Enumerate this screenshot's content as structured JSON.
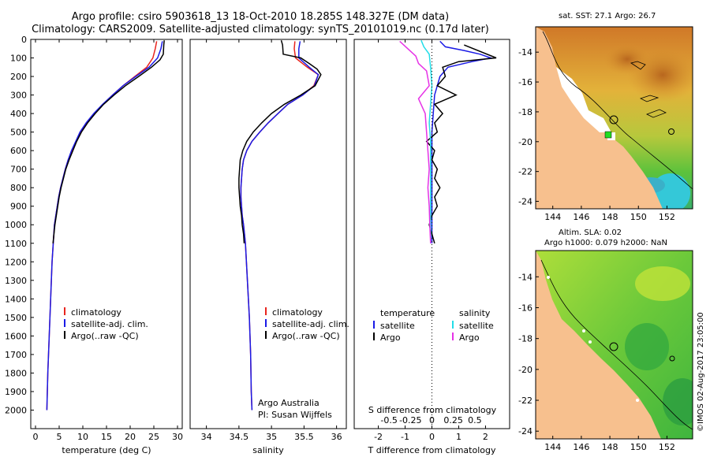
{
  "header": {
    "line1": "Argo profile: csiro 5903618_13 18-Oct-2010 18.285S 148.327E (DM data)",
    "line2": "Climatology: CARS2009. Satellite-adjusted climatology: synTS_20101019.nc (0.17d later)"
  },
  "colors": {
    "climatology": "#e8241e",
    "satellite": "#1a1ae6",
    "argo": "#000000",
    "sal_satellite": "#22dde8",
    "sal_argo": "#e632e6",
    "land": "#f7c08e"
  },
  "chart_data": [
    {
      "id": "temperature",
      "type": "line",
      "xlabel": "temperature (deg C)",
      "ylabel": "",
      "xlim": [
        -1,
        31
      ],
      "ylim": [
        2100,
        0
      ],
      "xticks": [
        0,
        5,
        10,
        15,
        20,
        25,
        30
      ],
      "yticks": [
        0,
        100,
        200,
        300,
        400,
        500,
        600,
        700,
        800,
        900,
        1000,
        1100,
        1200,
        1300,
        1400,
        1500,
        1600,
        1700,
        1800,
        1900,
        2000
      ],
      "legend": [
        "climatology",
        "satellite-adj. clim.",
        "Argo(..raw -QC)"
      ],
      "series": [
        {
          "name": "climatology",
          "color": "#e8241e",
          "points": [
            [
              25.6,
              10
            ],
            [
              25.3,
              50
            ],
            [
              24.8,
              100
            ],
            [
              23.5,
              150
            ],
            [
              21.0,
              200
            ],
            [
              18.5,
              250
            ],
            [
              16.3,
              300
            ],
            [
              14.3,
              350
            ],
            [
              12.4,
              400
            ],
            [
              10.9,
              450
            ],
            [
              9.6,
              500
            ],
            [
              8.6,
              550
            ],
            [
              7.7,
              600
            ],
            [
              6.9,
              650
            ],
            [
              6.3,
              700
            ],
            [
              5.8,
              750
            ],
            [
              5.3,
              800
            ],
            [
              4.9,
              850
            ],
            [
              4.6,
              900
            ],
            [
              4.3,
              950
            ],
            [
              4.0,
              1000
            ],
            [
              3.5,
              1200
            ],
            [
              3.2,
              1400
            ],
            [
              2.9,
              1600
            ],
            [
              2.6,
              1800
            ],
            [
              2.4,
              2000
            ]
          ]
        },
        {
          "name": "satellite-adj. clim.",
          "color": "#1a1ae6",
          "points": [
            [
              26.8,
              10
            ],
            [
              26.5,
              50
            ],
            [
              25.8,
              100
            ],
            [
              24.0,
              150
            ],
            [
              21.2,
              200
            ],
            [
              18.5,
              250
            ],
            [
              16.3,
              300
            ],
            [
              14.2,
              350
            ],
            [
              12.3,
              400
            ],
            [
              10.7,
              450
            ],
            [
              9.4,
              500
            ],
            [
              8.5,
              550
            ],
            [
              7.6,
              600
            ],
            [
              6.9,
              650
            ],
            [
              6.3,
              700
            ],
            [
              5.8,
              750
            ],
            [
              5.3,
              800
            ],
            [
              4.9,
              850
            ],
            [
              4.6,
              900
            ],
            [
              4.3,
              950
            ],
            [
              4.0,
              1000
            ],
            [
              3.5,
              1200
            ],
            [
              3.2,
              1400
            ],
            [
              2.9,
              1600
            ],
            [
              2.6,
              1800
            ],
            [
              2.4,
              2000
            ]
          ]
        },
        {
          "name": "Argo(..raw -QC)",
          "color": "#000000",
          "points": [
            [
              27.2,
              5
            ],
            [
              27.1,
              30
            ],
            [
              27.0,
              80
            ],
            [
              26.3,
              110
            ],
            [
              24.5,
              150
            ],
            [
              21.8,
              200
            ],
            [
              19.0,
              250
            ],
            [
              16.6,
              300
            ],
            [
              14.4,
              350
            ],
            [
              12.6,
              400
            ],
            [
              11.0,
              450
            ],
            [
              9.7,
              500
            ],
            [
              8.7,
              550
            ],
            [
              7.9,
              600
            ],
            [
              7.1,
              650
            ],
            [
              6.4,
              700
            ],
            [
              5.9,
              750
            ],
            [
              5.4,
              800
            ],
            [
              5.0,
              850
            ],
            [
              4.7,
              900
            ],
            [
              4.4,
              950
            ],
            [
              4.1,
              1000
            ],
            [
              3.9,
              1050
            ],
            [
              3.7,
              1100
            ]
          ]
        }
      ]
    },
    {
      "id": "salinity",
      "type": "line",
      "xlabel": "salinity",
      "ylabel": "",
      "xlim": [
        33.75,
        36.15
      ],
      "ylim": [
        2100,
        0
      ],
      "xticks": [
        34,
        34.5,
        35,
        35.5,
        36
      ],
      "legend": [
        "climatology",
        "satellite-adj. clim.",
        "Argo(..raw -QC)"
      ],
      "annotation": [
        "Argo Australia",
        "PI: Susan Wijffels"
      ],
      "series": [
        {
          "name": "climatology",
          "color": "#e8241e",
          "points": [
            [
              35.36,
              10
            ],
            [
              35.35,
              50
            ],
            [
              35.37,
              100
            ],
            [
              35.55,
              150
            ],
            [
              35.72,
              190
            ],
            [
              35.65,
              250
            ],
            [
              35.48,
              300
            ],
            [
              35.25,
              350
            ],
            [
              35.1,
              400
            ],
            [
              34.95,
              450
            ],
            [
              34.82,
              500
            ],
            [
              34.7,
              550
            ],
            [
              34.62,
              600
            ],
            [
              34.57,
              650
            ],
            [
              34.55,
              700
            ],
            [
              34.54,
              750
            ],
            [
              34.53,
              800
            ],
            [
              34.53,
              850
            ],
            [
              34.54,
              900
            ],
            [
              34.55,
              950
            ],
            [
              34.57,
              1000
            ],
            [
              34.6,
              1100
            ],
            [
              34.63,
              1300
            ],
            [
              34.66,
              1500
            ],
            [
              34.68,
              1700
            ],
            [
              34.69,
              1900
            ],
            [
              34.7,
              2000
            ]
          ]
        },
        {
          "name": "satellite-adj. clim.",
          "color": "#1a1ae6",
          "points": [
            [
              35.44,
              10
            ],
            [
              35.42,
              50
            ],
            [
              35.42,
              100
            ],
            [
              35.58,
              150
            ],
            [
              35.72,
              190
            ],
            [
              35.66,
              250
            ],
            [
              35.48,
              300
            ],
            [
              35.25,
              350
            ],
            [
              35.1,
              400
            ],
            [
              34.95,
              450
            ],
            [
              34.82,
              500
            ],
            [
              34.7,
              550
            ],
            [
              34.62,
              600
            ],
            [
              34.57,
              650
            ],
            [
              34.55,
              700
            ],
            [
              34.54,
              750
            ],
            [
              34.53,
              800
            ],
            [
              34.53,
              850
            ],
            [
              34.54,
              900
            ],
            [
              34.55,
              950
            ],
            [
              34.57,
              1000
            ],
            [
              34.6,
              1100
            ],
            [
              34.63,
              1300
            ],
            [
              34.66,
              1500
            ],
            [
              34.68,
              1700
            ],
            [
              34.69,
              1900
            ],
            [
              34.7,
              2000
            ]
          ]
        },
        {
          "name": "Argo(..raw -QC)",
          "color": "#000000",
          "points": [
            [
              35.15,
              5
            ],
            [
              35.17,
              30
            ],
            [
              35.18,
              80
            ],
            [
              35.45,
              100
            ],
            [
              35.58,
              130
            ],
            [
              35.7,
              160
            ],
            [
              35.76,
              190
            ],
            [
              35.67,
              250
            ],
            [
              35.45,
              300
            ],
            [
              35.2,
              350
            ],
            [
              35.0,
              400
            ],
            [
              34.85,
              450
            ],
            [
              34.72,
              500
            ],
            [
              34.62,
              550
            ],
            [
              34.56,
              600
            ],
            [
              34.52,
              650
            ],
            [
              34.51,
              700
            ],
            [
              34.5,
              750
            ],
            [
              34.5,
              800
            ],
            [
              34.51,
              850
            ],
            [
              34.52,
              900
            ],
            [
              34.54,
              950
            ],
            [
              34.55,
              1000
            ],
            [
              34.57,
              1050
            ],
            [
              34.58,
              1100
            ]
          ]
        }
      ]
    },
    {
      "id": "differences",
      "type": "line",
      "xlabel": "T difference from climatology",
      "xlabel_top": "S difference from climatology",
      "xlim": [
        -2.9,
        2.9
      ],
      "ylim": [
        2100,
        0
      ],
      "xticks_T": [
        -2,
        -1,
        0,
        1,
        2
      ],
      "xticks_S_labels": [
        "-0.5",
        "-0.25",
        "0",
        "0.25",
        "0.5"
      ],
      "legend_headers": [
        "temperature",
        "salinity"
      ],
      "legend": [
        "satellite",
        "Argo",
        "satellite",
        "Argo"
      ],
      "series": [
        {
          "name": "temperature satellite",
          "color": "#1a1ae6",
          "points": [
            [
              0.3,
              10
            ],
            [
              0.5,
              40
            ],
            [
              1.2,
              60
            ],
            [
              1.8,
              80
            ],
            [
              2.2,
              100
            ],
            [
              1.5,
              120
            ],
            [
              0.6,
              150
            ],
            [
              0.3,
              200
            ],
            [
              0.2,
              250
            ],
            [
              0.1,
              300
            ],
            [
              0.05,
              400
            ],
            [
              0.0,
              500
            ],
            [
              0.0,
              700
            ],
            [
              0.0,
              900
            ],
            [
              0.0,
              1100
            ]
          ]
        },
        {
          "name": "temperature Argo",
          "color": "#000000",
          "points": [
            [
              1.2,
              30
            ],
            [
              2.4,
              100
            ],
            [
              1.0,
              120
            ],
            [
              0.4,
              150
            ],
            [
              0.5,
              200
            ],
            [
              0.2,
              250
            ],
            [
              0.9,
              300
            ],
            [
              0.1,
              350
            ],
            [
              0.4,
              400
            ],
            [
              0.1,
              450
            ],
            [
              0.2,
              500
            ],
            [
              -0.2,
              550
            ],
            [
              0.1,
              600
            ],
            [
              0.0,
              650
            ],
            [
              0.2,
              700
            ],
            [
              0.1,
              750
            ],
            [
              0.3,
              800
            ],
            [
              0.1,
              850
            ],
            [
              0.2,
              900
            ],
            [
              0.0,
              950
            ],
            [
              -0.1,
              1000
            ],
            [
              0.0,
              1050
            ],
            [
              0.1,
              1100
            ]
          ]
        },
        {
          "name": "salinity satellite",
          "color": "#22dde8",
          "points": [
            [
              -0.4,
              5
            ],
            [
              -0.3,
              40
            ],
            [
              -0.1,
              80
            ],
            [
              -0.05,
              150
            ],
            [
              0.0,
              250
            ],
            [
              -0.05,
              350
            ],
            [
              -0.1,
              450
            ],
            [
              -0.05,
              550
            ],
            [
              -0.05,
              700
            ],
            [
              -0.05,
              850
            ],
            [
              -0.05,
              1000
            ],
            [
              -0.05,
              1100
            ]
          ]
        },
        {
          "name": "salinity Argo",
          "color": "#e632e6",
          "points": [
            [
              -1.2,
              10
            ],
            [
              -0.9,
              50
            ],
            [
              -0.6,
              90
            ],
            [
              -0.5,
              130
            ],
            [
              -0.2,
              170
            ],
            [
              -0.1,
              250
            ],
            [
              -0.5,
              320
            ],
            [
              -0.25,
              400
            ],
            [
              -0.2,
              500
            ],
            [
              -0.15,
              600
            ],
            [
              -0.1,
              700
            ],
            [
              -0.15,
              800
            ],
            [
              -0.1,
              900
            ],
            [
              -0.08,
              1000
            ],
            [
              -0.05,
              1100
            ]
          ]
        }
      ]
    },
    {
      "id": "sst-map",
      "type": "heatmap",
      "title": "sat. SST: 27.1  Argo: 26.7",
      "xticks": [
        144,
        146,
        148,
        150,
        152
      ],
      "yticks": [
        -14,
        -16,
        -18,
        -20,
        -22,
        -24
      ],
      "xlim": [
        142.8,
        153.8
      ],
      "ylim": [
        -24.5,
        -12.3
      ],
      "argo_position": [
        148.33,
        -18.29
      ]
    },
    {
      "id": "sla-map",
      "type": "heatmap",
      "title": "Altim. SLA: 0.02",
      "subtitle": "Argo h1000: 0.079  h2000: NaN",
      "xticks": [
        144,
        146,
        148,
        150,
        152
      ],
      "yticks": [
        -14,
        -16,
        -18,
        -20,
        -22,
        -24
      ],
      "xlim": [
        142.8,
        153.8
      ],
      "ylim": [
        -24.5,
        -12.3
      ],
      "argo_position": [
        148.33,
        -18.29
      ]
    }
  ],
  "credit": "©IMOS 02-Aug-2017 23:05:00"
}
